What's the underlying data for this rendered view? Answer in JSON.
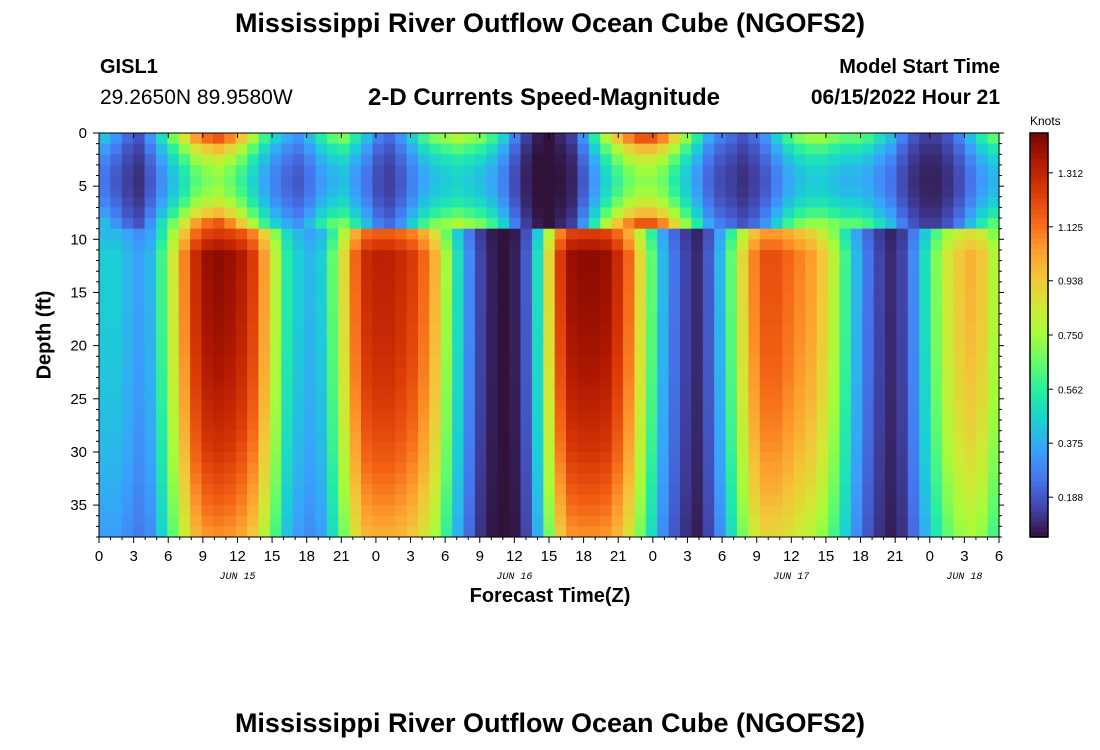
{
  "header": {
    "title": "Mississippi River Outflow Ocean Cube (NGOFS2)",
    "station": "GISL1",
    "coordinates": "29.2650N  89.9580W",
    "subtitle": "2-D Currents Speed-Magnitude",
    "model_start_label": "Model Start Time",
    "model_start_value": "06/15/2022 Hour 21"
  },
  "footer": {
    "title": "Mississippi River Outflow Ocean Cube (NGOFS2)"
  },
  "colors": {
    "colormap": [
      "#30123b",
      "#4145ab",
      "#4675ed",
      "#39a2fc",
      "#1bcfd4",
      "#24eca6",
      "#61fc6c",
      "#a4fc3b",
      "#d1e834",
      "#f3c63a",
      "#fe9b2d",
      "#f36315",
      "#d93806",
      "#b11901",
      "#7a0402"
    ]
  },
  "chart_data": {
    "type": "heatmap",
    "title": "2-D Currents Speed-Magnitude",
    "xlabel": "Forecast Time(Z)",
    "ylabel": "Depth (ft)",
    "colorbar_label": "Knots",
    "x_range_hours": [
      0,
      78
    ],
    "y_range_ft": [
      0,
      38
    ],
    "z_range_knots": [
      0.05,
      1.45
    ],
    "x_ticks": [
      {
        "hour": 0,
        "label": "0"
      },
      {
        "hour": 3,
        "label": "3"
      },
      {
        "hour": 6,
        "label": "6"
      },
      {
        "hour": 9,
        "label": "9"
      },
      {
        "hour": 12,
        "label": "12"
      },
      {
        "hour": 15,
        "label": "15"
      },
      {
        "hour": 18,
        "label": "18"
      },
      {
        "hour": 21,
        "label": "21"
      },
      {
        "hour": 24,
        "label": "0"
      },
      {
        "hour": 27,
        "label": "3"
      },
      {
        "hour": 30,
        "label": "6"
      },
      {
        "hour": 33,
        "label": "9"
      },
      {
        "hour": 36,
        "label": "12"
      },
      {
        "hour": 39,
        "label": "15"
      },
      {
        "hour": 42,
        "label": "18"
      },
      {
        "hour": 45,
        "label": "21"
      },
      {
        "hour": 48,
        "label": "0"
      },
      {
        "hour": 51,
        "label": "3"
      },
      {
        "hour": 54,
        "label": "6"
      },
      {
        "hour": 57,
        "label": "9"
      },
      {
        "hour": 60,
        "label": "12"
      },
      {
        "hour": 63,
        "label": "15"
      },
      {
        "hour": 66,
        "label": "18"
      },
      {
        "hour": 69,
        "label": "21"
      },
      {
        "hour": 72,
        "label": "0"
      },
      {
        "hour": 75,
        "label": "3"
      },
      {
        "hour": 78,
        "label": "6"
      }
    ],
    "date_labels": [
      {
        "hour": 12,
        "label": "JUN 15"
      },
      {
        "hour": 36,
        "label": "JUN 16"
      },
      {
        "hour": 60,
        "label": "JUN 17"
      },
      {
        "hour": 75,
        "label": "JUN 18"
      }
    ],
    "y_ticks": [
      0,
      5,
      10,
      15,
      20,
      25,
      30,
      35
    ],
    "colorbar_ticks": [
      "1.312",
      "1.125",
      "0.938",
      "0.750",
      "0.562",
      "0.375",
      "0.188"
    ],
    "columns_per_hour": 1,
    "depth_levels": 38,
    "top_layer_depth_ft": 9,
    "max_near_surface_knots": [
      0.45,
      0.35,
      0.25,
      0.2,
      0.35,
      0.55,
      0.75,
      0.95,
      1.15,
      1.25,
      1.3,
      1.2,
      1.05,
      0.85,
      0.65,
      0.5,
      0.4,
      0.35,
      0.45,
      0.6,
      0.7,
      0.75,
      0.6,
      0.45,
      0.3,
      0.25,
      0.35,
      0.5,
      0.65,
      0.75,
      0.8,
      0.85,
      0.8,
      0.75,
      0.65,
      0.5,
      0.3,
      0.15,
      0.08,
      0.05,
      0.1,
      0.15,
      0.35,
      0.6,
      0.85,
      1.05,
      1.2,
      1.3,
      1.3,
      1.2,
      1.0,
      0.8,
      0.6,
      0.4,
      0.3,
      0.25,
      0.2,
      0.25,
      0.35,
      0.5,
      0.65,
      0.75,
      0.8,
      0.8,
      0.75,
      0.7,
      0.7,
      0.65,
      0.55,
      0.45,
      0.3,
      0.2,
      0.15,
      0.15,
      0.2,
      0.3,
      0.45,
      0.6,
      0.7
    ],
    "max_deep_knots": [
      0.45,
      0.45,
      0.4,
      0.35,
      0.4,
      0.6,
      0.85,
      1.1,
      1.3,
      1.4,
      1.42,
      1.4,
      1.35,
      1.25,
      1.05,
      0.8,
      0.55,
      0.45,
      0.4,
      0.45,
      0.65,
      0.9,
      1.15,
      1.3,
      1.33,
      1.33,
      1.3,
      1.25,
      1.15,
      1.0,
      0.75,
      0.5,
      0.3,
      0.15,
      0.08,
      0.05,
      0.08,
      0.2,
      0.5,
      0.9,
      1.25,
      1.4,
      1.42,
      1.42,
      1.4,
      1.3,
      1.15,
      0.9,
      0.65,
      0.4,
      0.25,
      0.15,
      0.1,
      0.2,
      0.4,
      0.65,
      0.9,
      1.1,
      1.2,
      1.2,
      1.15,
      1.1,
      1.05,
      0.95,
      0.8,
      0.6,
      0.4,
      0.25,
      0.15,
      0.1,
      0.15,
      0.3,
      0.5,
      0.7,
      0.85,
      0.95,
      1.0,
      0.95,
      0.8
    ]
  }
}
